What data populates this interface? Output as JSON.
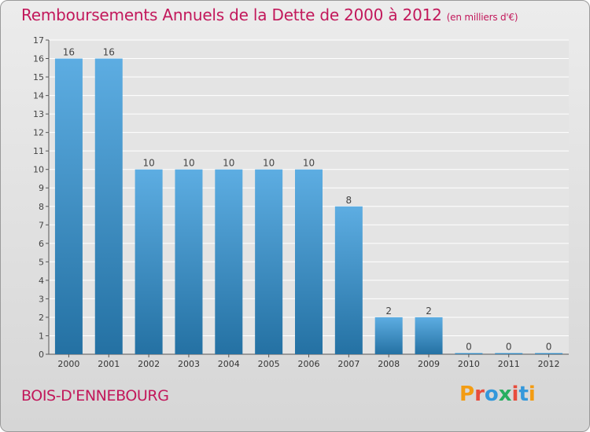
{
  "header": {
    "title": "Remboursements Annuels de la Dette de 2000 à 2012",
    "unit": "(en milliers d'€)"
  },
  "footer": {
    "commune": "BOIS-D'ENNEBOURG",
    "brand": "Proxiti"
  },
  "colors": {
    "title": "#c2185b",
    "bar_light": "#5dade2",
    "bar_dark": "#2471a3",
    "brand": [
      "#f39c12",
      "#e74c3c",
      "#3498db",
      "#27ae60",
      "#e74c3c",
      "#3498db",
      "#f39c12"
    ]
  },
  "chart_data": {
    "type": "bar",
    "categories": [
      "2000",
      "2001",
      "2002",
      "2003",
      "2004",
      "2005",
      "2006",
      "2007",
      "2008",
      "2009",
      "2010",
      "2011",
      "2012"
    ],
    "values": [
      16,
      16,
      10,
      10,
      10,
      10,
      10,
      8,
      2,
      2,
      0,
      0,
      0
    ],
    "data_labels": [
      "16",
      "16",
      "10",
      "10",
      "10",
      "10",
      "10",
      "8",
      "2",
      "2",
      "0",
      "0",
      "0"
    ],
    "ylim": [
      0,
      17
    ],
    "yticks": [
      "0",
      "1",
      "2",
      "3",
      "4",
      "5",
      "6",
      "7",
      "8",
      "9",
      "10",
      "11",
      "12",
      "13",
      "14",
      "15",
      "16",
      "17"
    ],
    "grid": true,
    "xlabel": "",
    "ylabel": ""
  }
}
